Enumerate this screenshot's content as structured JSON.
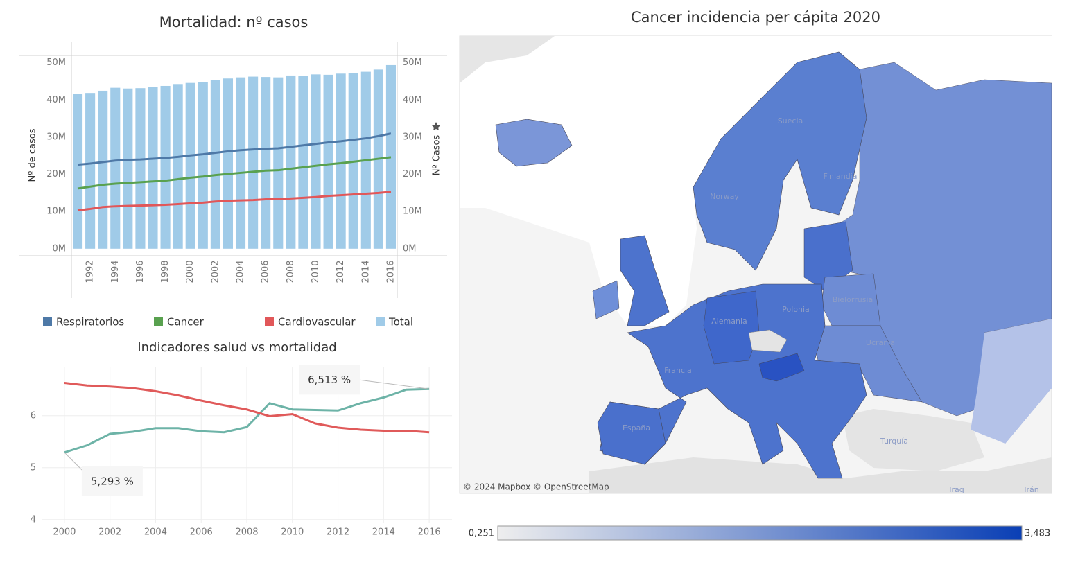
{
  "chart_data": [
    {
      "type": "bar-line",
      "title": "Mortalidad: nº casos",
      "y_label": "Nº de casos",
      "y2_label": "Nº Casos",
      "x": [
        1991,
        1992,
        1993,
        1994,
        1995,
        1996,
        1997,
        1998,
        1999,
        2000,
        2001,
        2002,
        2003,
        2004,
        2005,
        2006,
        2007,
        2008,
        2009,
        2010,
        2011,
        2012,
        2013,
        2014,
        2015,
        2016
      ],
      "xlim": [
        1990.5,
        2016.5
      ],
      "xticks": [
        1992,
        1994,
        1996,
        1998,
        2000,
        2002,
        2004,
        2006,
        2008,
        2010,
        2012,
        2014,
        2016
      ],
      "ylim": [
        -1900000,
        52000000
      ],
      "yticks": [
        {
          "value": 0,
          "label": "0M"
        },
        {
          "value": 10000000,
          "label": "10M"
        },
        {
          "value": 20000000,
          "label": "20M"
        },
        {
          "value": 30000000,
          "label": "30M"
        },
        {
          "value": 40000000,
          "label": "40M"
        },
        {
          "value": 50000000,
          "label": "50M"
        }
      ],
      "y2lim": [
        -1900000,
        52000000
      ],
      "y2ticks": [
        {
          "value": 0,
          "label": "0M"
        },
        {
          "value": 10000000,
          "label": "10M"
        },
        {
          "value": 20000000,
          "label": "20M"
        },
        {
          "value": 30000000,
          "label": "30M"
        },
        {
          "value": 40000000,
          "label": "40M"
        },
        {
          "value": 50000000,
          "label": "50M"
        }
      ],
      "series": [
        {
          "name": "Respiratorios",
          "color": "#4e79a7",
          "kind": "line",
          "axis": "y2",
          "values": [
            22600000,
            22900000,
            23300000,
            23700000,
            23900000,
            24000000,
            24200000,
            24400000,
            24700000,
            25100000,
            25400000,
            25800000,
            26200000,
            26500000,
            26700000,
            26900000,
            27000000,
            27400000,
            27800000,
            28200000,
            28600000,
            28900000,
            29300000,
            29700000,
            30300000,
            31000000
          ]
        },
        {
          "name": "Cancer",
          "color": "#59a14f",
          "kind": "line",
          "axis": "y2",
          "values": [
            16200000,
            16700000,
            17200000,
            17500000,
            17700000,
            17900000,
            18100000,
            18300000,
            18700000,
            19100000,
            19400000,
            19800000,
            20100000,
            20400000,
            20700000,
            21000000,
            21100000,
            21500000,
            21900000,
            22300000,
            22700000,
            23000000,
            23400000,
            23800000,
            24200000,
            24600000
          ]
        },
        {
          "name": "Cardiovascular",
          "color": "#e15759",
          "kind": "line",
          "axis": "y2",
          "values": [
            10300000,
            10700000,
            11200000,
            11400000,
            11500000,
            11600000,
            11700000,
            11800000,
            12000000,
            12200000,
            12400000,
            12700000,
            12900000,
            13000000,
            13100000,
            13300000,
            13300000,
            13500000,
            13700000,
            13900000,
            14200000,
            14400000,
            14600000,
            14800000,
            15000000,
            15300000
          ]
        },
        {
          "name": "Total",
          "color": "#a0cbe8",
          "kind": "bar",
          "values": [
            41600000,
            41900000,
            42500000,
            43300000,
            43100000,
            43200000,
            43500000,
            43800000,
            44300000,
            44600000,
            44900000,
            45400000,
            45800000,
            46100000,
            46300000,
            46200000,
            46100000,
            46600000,
            46500000,
            46900000,
            46800000,
            47100000,
            47300000,
            47600000,
            48200000,
            49400000
          ]
        }
      ]
    },
    {
      "type": "line",
      "title": "Indicadores salud vs mortalidad",
      "x": [
        2000,
        2001,
        2002,
        2003,
        2004,
        2005,
        2006,
        2007,
        2008,
        2009,
        2010,
        2011,
        2012,
        2013,
        2014,
        2015,
        2016
      ],
      "xlim": [
        1999,
        2017
      ],
      "xticks": [
        2000,
        2002,
        2004,
        2006,
        2008,
        2010,
        2012,
        2014,
        2016
      ],
      "ylim": [
        3.93,
        6.93
      ],
      "yticks": [
        4,
        5,
        6
      ],
      "grid": true,
      "series": [
        {
          "color": "#6db3a7",
          "values": [
            5.293,
            5.43,
            5.65,
            5.69,
            5.76,
            5.76,
            5.7,
            5.68,
            5.78,
            6.24,
            6.12,
            6.11,
            6.1,
            6.24,
            6.35,
            6.5,
            6.513
          ],
          "value_labels": [
            "5,293 %",
            null,
            null,
            null,
            null,
            null,
            null,
            null,
            null,
            null,
            null,
            null,
            null,
            null,
            null,
            null,
            "6,513 %"
          ]
        },
        {
          "color": "#e05a5a",
          "values": [
            6.63,
            6.58,
            6.56,
            6.53,
            6.47,
            6.39,
            6.29,
            6.2,
            6.12,
            5.99,
            6.03,
            5.85,
            5.77,
            5.73,
            5.71,
            5.71,
            5.68
          ]
        }
      ]
    }
  ],
  "map": {
    "title": "Cancer incidencia per cápita 2020",
    "labels": [
      "Suecia",
      "Finlandia",
      "Norway",
      "Bielorrusia",
      "Polonia",
      "Alemania",
      "Ucrania",
      "Francia",
      "España",
      "Turquía",
      "Iraq",
      "Irán"
    ],
    "attribution": "© 2024 Mapbox © OpenStreetMap",
    "color_legend": {
      "min": {
        "value": 0.251,
        "label": "0,251"
      },
      "max": {
        "value": 3.483,
        "label": "3,483"
      },
      "colors": [
        "#eeeeee",
        "#0a3fb5"
      ]
    }
  }
}
